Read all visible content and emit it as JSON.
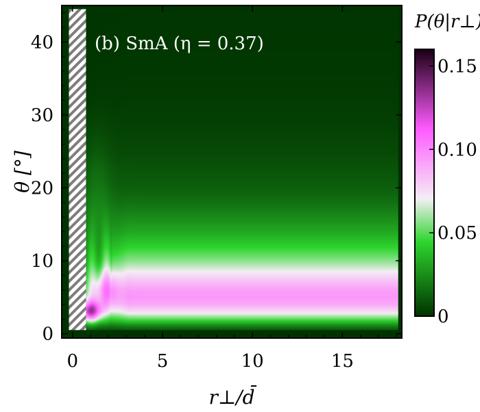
{
  "chart_data": {
    "type": "heatmap",
    "title": "",
    "annotation": "(b) SmA (η = 0.37)",
    "xlabel": "r⊥/d̄",
    "ylabel": "θ [°]",
    "xlim": [
      -0.6,
      18.3
    ],
    "ylim": [
      -0.6,
      45
    ],
    "x_ticks": [
      0,
      5,
      10,
      15
    ],
    "y_ticks": [
      0,
      10,
      20,
      30,
      40
    ],
    "excluded_region": {
      "x": [
        -0.2,
        0.75
      ],
      "pattern": "hatched"
    },
    "colorbar": {
      "title": "P(θ|r⊥)",
      "range": [
        0,
        0.16
      ],
      "ticks": [
        0,
        0.05,
        0.1,
        0.15
      ],
      "tick_labels": [
        "0",
        "0.05",
        "0.10",
        "0.15"
      ],
      "colors": [
        "#003300",
        "#2fd62f",
        "#f4eef4",
        "#ff5cff",
        "#1a0014"
      ]
    },
    "bulk_profile": {
      "theta": [
        0,
        1,
        2,
        3,
        4,
        5,
        6,
        7,
        8,
        9,
        10,
        11,
        12,
        14,
        16,
        18,
        20,
        25,
        30,
        35,
        40,
        45
      ],
      "P": [
        0.0,
        0.02,
        0.05,
        0.075,
        0.09,
        0.095,
        0.093,
        0.085,
        0.076,
        0.066,
        0.057,
        0.05,
        0.043,
        0.032,
        0.024,
        0.017,
        0.012,
        0.006,
        0.003,
        0.0015,
        0.0008,
        0.0004
      ]
    },
    "near_wall_peak": {
      "r": 1.0,
      "theta": 3,
      "P": 0.16
    }
  }
}
